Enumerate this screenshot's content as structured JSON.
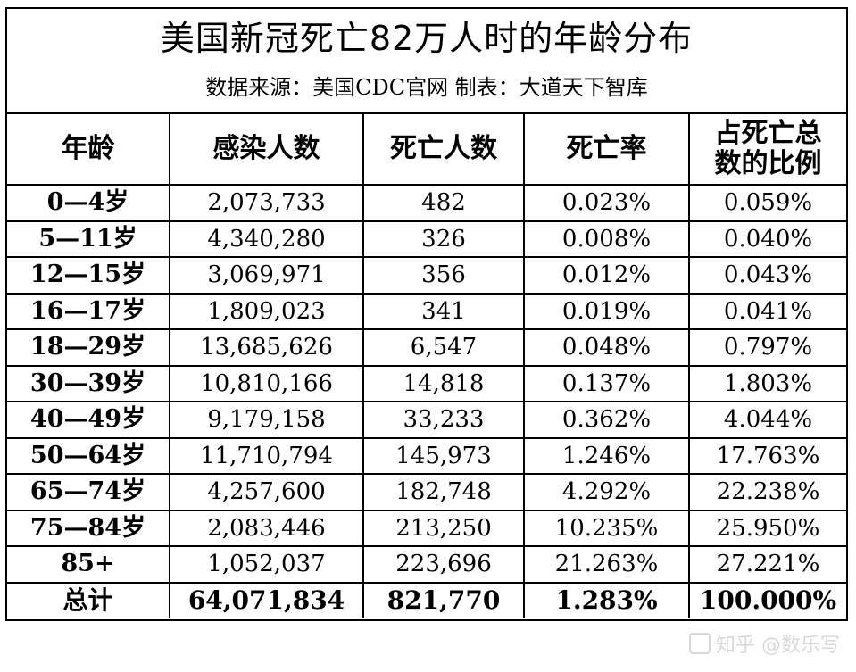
{
  "title": "美国新冠死亡82万人时的年龄分布",
  "subtitle": "数据来源：美国CDC官网 制表：大道天下智库",
  "table": {
    "headers": [
      "年龄",
      "感染人数",
      "死亡人数",
      "死亡率",
      "占死亡总数的比例"
    ],
    "rows": [
      {
        "age": "0—4岁",
        "infected": "2,073,733",
        "deaths": "482",
        "rate": "0.023%",
        "share": "0.059%"
      },
      {
        "age": "5—11岁",
        "infected": "4,340,280",
        "deaths": "326",
        "rate": "0.008%",
        "share": "0.040%"
      },
      {
        "age": "12—15岁",
        "infected": "3,069,971",
        "deaths": "356",
        "rate": "0.012%",
        "share": "0.043%"
      },
      {
        "age": "16—17岁",
        "infected": "1,809,023",
        "deaths": "341",
        "rate": "0.019%",
        "share": "0.041%"
      },
      {
        "age": "18—29岁",
        "infected": "13,685,626",
        "deaths": "6,547",
        "rate": "0.048%",
        "share": "0.797%"
      },
      {
        "age": "30—39岁",
        "infected": "10,810,166",
        "deaths": "14,818",
        "rate": "0.137%",
        "share": "1.803%"
      },
      {
        "age": "40—49岁",
        "infected": "9,179,158",
        "deaths": "33,233",
        "rate": "0.362%",
        "share": "4.044%"
      },
      {
        "age": "50—64岁",
        "infected": "11,710,794",
        "deaths": "145,973",
        "rate": "1.246%",
        "share": "17.763%"
      },
      {
        "age": "65—74岁",
        "infected": "4,257,600",
        "deaths": "182,748",
        "rate": "4.292%",
        "share": "22.238%"
      },
      {
        "age": "75—84岁",
        "infected": "2,083,446",
        "deaths": "213,250",
        "rate": "10.235%",
        "share": "25.950%"
      },
      {
        "age": "85+",
        "infected": "1,052,037",
        "deaths": "223,696",
        "rate": "21.263%",
        "share": "27.221%"
      }
    ],
    "total": {
      "age": "总计",
      "infected": "64,071,834",
      "deaths": "821,770",
      "rate": "1.283%",
      "share": "100.000%"
    }
  },
  "watermark": "知乎 @数乐写"
}
